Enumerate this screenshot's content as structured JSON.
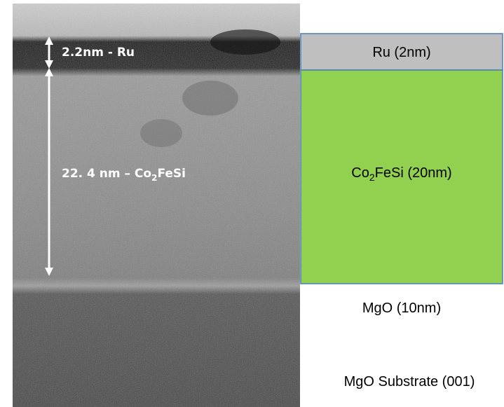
{
  "image": {
    "annotations": [
      {
        "label": [
          "2.2nm - Ru"
        ]
      },
      {
        "label": [
          "22. 4 nm – Co",
          "2",
          "FeSi"
        ]
      }
    ]
  },
  "schematic": {
    "layers": [
      {
        "label": [
          "Ru (2nm)"
        ]
      },
      {
        "label": [
          "Co",
          "2",
          "FeSi (20nm)"
        ]
      },
      {
        "label": [
          "MgO (10nm)"
        ]
      },
      {
        "label": [
          "MgO Substrate (001)"
        ]
      }
    ]
  }
}
